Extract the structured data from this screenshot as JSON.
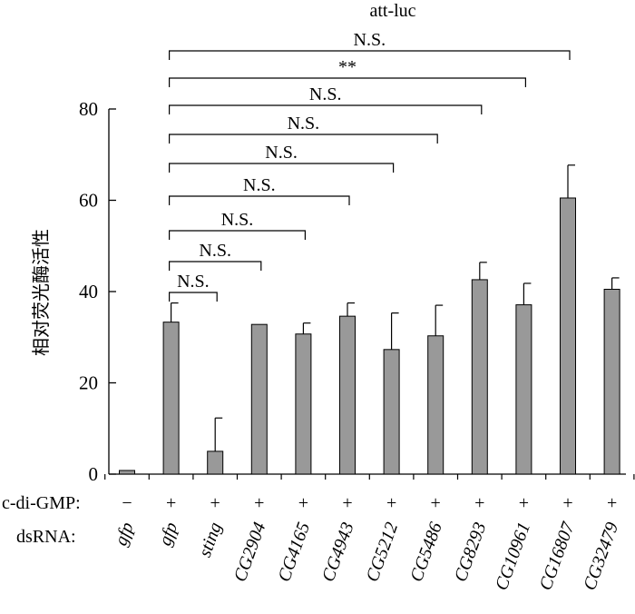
{
  "chart_data": {
    "type": "bar",
    "title": "att-luc",
    "ylabel": "相对荧光酶活性",
    "ylim": [
      0,
      80
    ],
    "yticks": [
      0,
      20,
      40,
      60,
      80
    ],
    "grid": false,
    "bar_color": "#999999",
    "row_labels": {
      "treatment": "c-di-GMP:",
      "dsrna": "dsRNA:"
    },
    "categories": [
      "gfp",
      "gfp",
      "sting",
      "CG2904",
      "CG4165",
      "CG4943",
      "CG5212",
      "CG5486",
      "CG8293",
      "CG10961",
      "CG16807",
      "CG32479"
    ],
    "treatment": [
      "−",
      "+",
      "+",
      "+",
      "+",
      "+",
      "+",
      "+",
      "+",
      "+",
      "+",
      "+"
    ],
    "values": [
      0.8,
      33.3,
      5.0,
      32.8,
      30.7,
      34.6,
      27.3,
      30.3,
      42.6,
      37.1,
      60.5,
      40.5
    ],
    "errors": [
      0,
      4.2,
      7.3,
      0,
      2.4,
      2.9,
      8.0,
      6.7,
      3.8,
      4.7,
      7.2,
      2.5
    ],
    "comparisons": [
      {
        "from": 1,
        "to": 2,
        "label": "N.S."
      },
      {
        "from": 1,
        "to": 3,
        "label": "N.S."
      },
      {
        "from": 1,
        "to": 4,
        "label": "N.S."
      },
      {
        "from": 1,
        "to": 5,
        "label": "N.S."
      },
      {
        "from": 1,
        "to": 6,
        "label": "N.S."
      },
      {
        "from": 1,
        "to": 7,
        "label": "N.S."
      },
      {
        "from": 1,
        "to": 8,
        "label": "N.S."
      },
      {
        "from": 1,
        "to": 9,
        "label": "**"
      },
      {
        "from": 1,
        "to": 10,
        "label": "N.S."
      }
    ]
  }
}
